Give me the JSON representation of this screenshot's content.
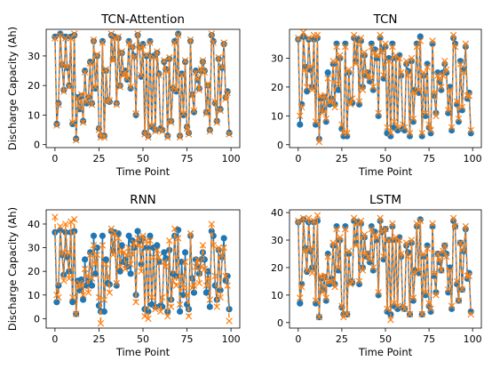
{
  "colors": {
    "actual": "#1f77b4",
    "predicted": "#ff7f0e",
    "frame": "#000000"
  },
  "chart_data": [
    {
      "type": "line",
      "title": "TCN-Attention",
      "xlabel": "Time Point",
      "ylabel": "Discharge Capacity (Ah)",
      "xlim": [
        -5,
        105
      ],
      "ylim": [
        -1,
        39
      ],
      "xticks": [
        0,
        25,
        50,
        75,
        100
      ],
      "yticks": [
        0,
        10,
        20,
        30
      ],
      "series": [
        {
          "marker": "circle",
          "values": [
            36.5,
            7,
            14,
            37.5,
            27,
            18.5,
            36.5,
            26,
            20,
            36.5,
            7,
            37,
            2,
            16,
            12,
            16.5,
            8,
            25,
            14,
            16,
            28,
            14,
            35,
            19,
            30,
            5.5,
            3,
            35,
            3,
            25,
            15,
            14.5,
            37,
            29,
            36.5,
            14,
            36,
            20,
            31,
            24,
            25,
            22,
            35,
            19,
            33,
            30,
            10,
            37,
            33,
            23,
            34,
            4,
            30,
            3,
            35,
            6,
            30,
            5,
            31,
            24,
            5.5,
            5,
            28,
            25.5,
            3,
            29,
            8,
            19,
            35,
            18,
            37.5,
            3,
            24,
            10,
            28,
            6,
            4,
            35,
            17,
            11,
            25,
            22,
            19,
            25,
            28,
            25,
            11,
            20,
            5,
            37,
            35,
            14,
            8,
            29,
            12,
            26,
            34,
            16,
            18,
            4
          ]
        },
        {
          "marker": "x",
          "values": [
            36,
            6.5,
            13.5,
            37,
            27.5,
            18,
            36,
            26.5,
            19.5,
            36,
            7.5,
            37.5,
            1.5,
            15.5,
            12.5,
            17,
            7.5,
            24.5,
            14.5,
            16.5,
            27.5,
            13.5,
            35.5,
            19.5,
            30.5,
            5,
            2.5,
            34.5,
            2.5,
            25.5,
            14.5,
            15,
            37.5,
            28.5,
            36,
            13.5,
            36.5,
            19.5,
            31.5,
            23.5,
            24.5,
            22.5,
            34.5,
            19.5,
            33.5,
            29.5,
            10.5,
            37.5,
            32.5,
            23.5,
            33.5,
            3.5,
            30.5,
            2.5,
            34.5,
            6.5,
            29.5,
            4.5,
            31.5,
            23.5,
            5,
            4.5,
            28.5,
            25,
            2.5,
            29.5,
            7.5,
            19.5,
            34.5,
            18.5,
            37,
            2.5,
            23.5,
            10.5,
            28.5,
            5.5,
            3.5,
            35.5,
            16.5,
            11.5,
            24.5,
            22.5,
            18.5,
            25.5,
            28.5,
            24.5,
            10.5,
            20.5,
            4.5,
            37.5,
            34.5,
            14.5,
            7.5,
            29.5,
            11.5,
            26.5,
            34.5,
            15.5,
            17.5,
            3.5
          ]
        }
      ]
    },
    {
      "type": "line",
      "title": "TCN",
      "xlabel": "Time Point",
      "ylabel": "",
      "xlim": [
        -5,
        105
      ],
      "ylim": [
        -1,
        40
      ],
      "xticks": [
        0,
        25,
        50,
        75,
        100
      ],
      "yticks": [
        0,
        10,
        20,
        30
      ],
      "series": [
        {
          "marker": "circle",
          "values": [
            36.5,
            7,
            14,
            37.5,
            27,
            18.5,
            36.5,
            26,
            20,
            36.5,
            7,
            37,
            2,
            16,
            12,
            16.5,
            8,
            25,
            14,
            16,
            28,
            14,
            35,
            19,
            30,
            5.5,
            3,
            35,
            3,
            25,
            15,
            14.5,
            37,
            29,
            36.5,
            14,
            36,
            20,
            31,
            24,
            25,
            22,
            35,
            19,
            33,
            30,
            10,
            37,
            33,
            23,
            34,
            4,
            30,
            3,
            35,
            6,
            30,
            5,
            31,
            24,
            5.5,
            5,
            28,
            25.5,
            3,
            29,
            8,
            19,
            35,
            18,
            37.5,
            3,
            24,
            10,
            28,
            6,
            4,
            35,
            17,
            11,
            25,
            22,
            19,
            25,
            28,
            25,
            11,
            20,
            5,
            37,
            35,
            14,
            8,
            29,
            12,
            26,
            34,
            16,
            18,
            4
          ]
        },
        {
          "marker": "x",
          "values": [
            37,
            10,
            13,
            39,
            26,
            20,
            37,
            27,
            19,
            38,
            8,
            38,
            1,
            17,
            11,
            17,
            9,
            23,
            15,
            15,
            29,
            13,
            34,
            21,
            31,
            7,
            4,
            34,
            4,
            26,
            14,
            16,
            38,
            28,
            35,
            15,
            37,
            19,
            32,
            25,
            24,
            23,
            34,
            20,
            32,
            31,
            11,
            38,
            32,
            24,
            35,
            6,
            29,
            4,
            34,
            8,
            31,
            6,
            30,
            25,
            7,
            6,
            29,
            24,
            4,
            30,
            9,
            18,
            34,
            19,
            36,
            4,
            25,
            11,
            27,
            7,
            5,
            36,
            18,
            10,
            24,
            23,
            20,
            24,
            29,
            26,
            12,
            19,
            6,
            38,
            34,
            15,
            9,
            28,
            13,
            25,
            35,
            17,
            17,
            5
          ]
        }
      ]
    },
    {
      "type": "line",
      "title": "RNN",
      "xlabel": "Time Point",
      "ylabel": "Discharge Capacity (Ah)",
      "xlim": [
        -5,
        105
      ],
      "ylim": [
        -4,
        46
      ],
      "xticks": [
        0,
        25,
        50,
        75,
        100
      ],
      "yticks": [
        0,
        10,
        20,
        30,
        40
      ],
      "series": [
        {
          "marker": "circle",
          "values": [
            36.5,
            7,
            14,
            37.5,
            27,
            18.5,
            36.5,
            26,
            20,
            36.5,
            7,
            37,
            2,
            16,
            12,
            16.5,
            8,
            25,
            14,
            16,
            28,
            14,
            35,
            19,
            30,
            5.5,
            3,
            35,
            3,
            25,
            15,
            14.5,
            37,
            29,
            36.5,
            14,
            36,
            20,
            31,
            24,
            25,
            22,
            35,
            19,
            33,
            30,
            10,
            37,
            33,
            23,
            34,
            4,
            30,
            3,
            35,
            6,
            30,
            5,
            31,
            24,
            5.5,
            5,
            28,
            25.5,
            3,
            29,
            8,
            19,
            35,
            18,
            37.5,
            3,
            24,
            10,
            28,
            6,
            4,
            35,
            17,
            11,
            25,
            22,
            19,
            25,
            28,
            25,
            11,
            20,
            5,
            37,
            35,
            14,
            8,
            29,
            12,
            26,
            34,
            16,
            18,
            4
          ]
        },
        {
          "marker": "x",
          "values": [
            43,
            10,
            9,
            39,
            28,
            16,
            40,
            28,
            17,
            41,
            9,
            42,
            2,
            14,
            15,
            14,
            10,
            21,
            18,
            11,
            27,
            17,
            31,
            23,
            27,
            9,
            -2,
            31,
            8,
            23,
            18,
            11,
            38,
            27,
            36,
            15,
            34,
            22,
            29,
            28,
            21,
            27,
            30,
            23,
            27,
            32,
            7,
            34,
            31,
            20,
            35,
            1,
            33,
            0,
            33,
            9,
            26,
            4,
            29,
            26,
            3,
            9,
            24,
            22,
            1,
            33,
            5,
            16,
            38,
            14,
            34,
            6,
            18,
            13,
            24,
            10,
            1,
            36,
            13,
            14,
            22,
            25,
            15,
            22,
            31,
            21,
            14,
            17,
            8,
            40,
            31,
            18,
            5,
            30,
            9,
            27,
            30,
            18,
            14,
            -1
          ]
        }
      ]
    },
    {
      "type": "line",
      "title": "LSTM",
      "xlabel": "Time Point",
      "ylabel": "",
      "xlim": [
        -5,
        105
      ],
      "ylim": [
        -2,
        41
      ],
      "xticks": [
        0,
        25,
        50,
        75,
        100
      ],
      "yticks": [
        0,
        10,
        20,
        30,
        40
      ],
      "series": [
        {
          "marker": "circle",
          "values": [
            36.5,
            7,
            14,
            37.5,
            27,
            18.5,
            36.5,
            26,
            20,
            36.5,
            7,
            37,
            2,
            16,
            12,
            16.5,
            8,
            25,
            14,
            16,
            28,
            14,
            35,
            19,
            30,
            5.5,
            3,
            35,
            3,
            25,
            15,
            14.5,
            37,
            29,
            36.5,
            14,
            36,
            20,
            31,
            24,
            25,
            22,
            35,
            19,
            33,
            30,
            10,
            37,
            33,
            23,
            34,
            4,
            30,
            3,
            35,
            6,
            30,
            5,
            31,
            24,
            5.5,
            5,
            28,
            25.5,
            3,
            29,
            8,
            19,
            35,
            18,
            37.5,
            3,
            24,
            10,
            28,
            6,
            4,
            35,
            17,
            11,
            25,
            22,
            19,
            25,
            28,
            25,
            11,
            20,
            5,
            37,
            35,
            14,
            8,
            29,
            12,
            26,
            34,
            16,
            18,
            4
          ]
        },
        {
          "marker": "x",
          "values": [
            37,
            9,
            13,
            38,
            26,
            19,
            38,
            27,
            18,
            37,
            8,
            39,
            2,
            17,
            11,
            17,
            9,
            24,
            15,
            15,
            29,
            13,
            34,
            20,
            31,
            6,
            2,
            34,
            3,
            26,
            14,
            15,
            38,
            28,
            36,
            15,
            37,
            19,
            32,
            25,
            24,
            23,
            34,
            20,
            32,
            31,
            11,
            38,
            33,
            24,
            34,
            5,
            30,
            1,
            36,
            7,
            31,
            6,
            30,
            25,
            6,
            5,
            29,
            24,
            3,
            30,
            9,
            18,
            36,
            19,
            37,
            3,
            25,
            11,
            27,
            7,
            5,
            36,
            18,
            10,
            25,
            23,
            19,
            26,
            28,
            24,
            12,
            19,
            6,
            38,
            35,
            15,
            8,
            29,
            12,
            27,
            35,
            17,
            17,
            3
          ]
        }
      ]
    }
  ]
}
